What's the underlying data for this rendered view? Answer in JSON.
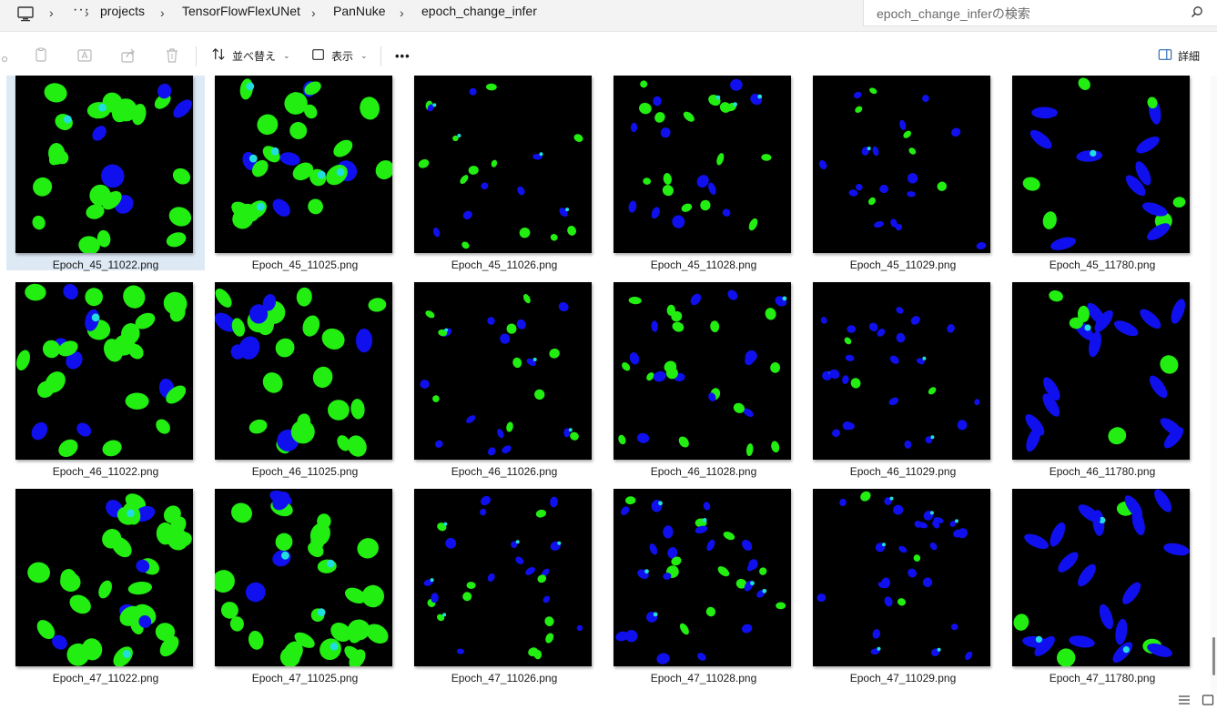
{
  "address_bar": {
    "ellipsis": "···",
    "crumbs": [
      "projects",
      "TensorFlowFlexUNet",
      "PanNuke",
      "epoch_change_infer"
    ]
  },
  "search": {
    "placeholder": "epoch_change_inferの検索"
  },
  "toolbar": {
    "sort_label": "並べ替え",
    "view_label": "表示",
    "more_label": "•••",
    "details_label": "詳細"
  },
  "files": [
    {
      "name": "Epoch_45_11022.png",
      "selected": true
    },
    {
      "name": "Epoch_45_11025.png"
    },
    {
      "name": "Epoch_45_11026.png"
    },
    {
      "name": "Epoch_45_11028.png"
    },
    {
      "name": "Epoch_45_11029.png"
    },
    {
      "name": "Epoch_45_11780.png"
    },
    {
      "name": "Epoch_46_11022.png"
    },
    {
      "name": "Epoch_46_11025.png"
    },
    {
      "name": "Epoch_46_11026.png"
    },
    {
      "name": "Epoch_46_11028.png"
    },
    {
      "name": "Epoch_46_11029.png"
    },
    {
      "name": "Epoch_46_11780.png"
    },
    {
      "name": "Epoch_47_11022.png"
    },
    {
      "name": "Epoch_47_11025.png"
    },
    {
      "name": "Epoch_47_11026.png"
    },
    {
      "name": "Epoch_47_11028.png"
    },
    {
      "name": "Epoch_47_11029.png"
    },
    {
      "name": "Epoch_47_11780.png"
    }
  ],
  "colors": {
    "nucleus_green": "#22ee11",
    "nucleus_blue": "#1010ee",
    "nucleus_cyan": "#22dddd",
    "selection": "#dde9f5"
  }
}
